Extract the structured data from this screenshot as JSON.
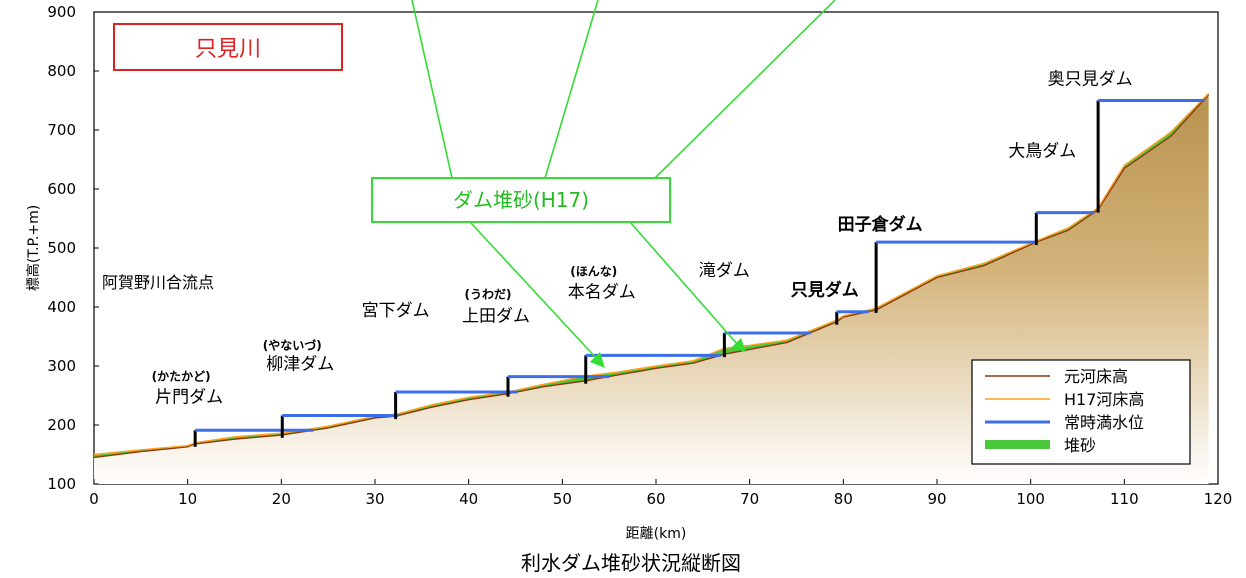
{
  "title": "利水ダム堆砂状況縦断図",
  "chart_data": {
    "type": "line",
    "title": "利水ダム堆砂状況縦断図",
    "river_label": "只見川",
    "confluence_label": "阿賀野川合流点",
    "callout_label": "ダム堆砂(H17)",
    "xlabel": "距離(km)",
    "ylabel": "標高(T.P.+m)",
    "xlim": [
      0,
      120
    ],
    "ylim": [
      100,
      900
    ],
    "x_ticks": [
      "0",
      "10",
      "20",
      "30",
      "40",
      "50",
      "60",
      "70",
      "80",
      "90",
      "100",
      "110",
      "120"
    ],
    "y_ticks": [
      "100",
      "200",
      "300",
      "400",
      "500",
      "600",
      "700",
      "800",
      "900"
    ],
    "grid": false,
    "legend_position": "bottom-right",
    "legend": [
      {
        "label": "元河床高",
        "color": "#8B3A0F"
      },
      {
        "label": "H17河床高",
        "color": "#FFA020"
      },
      {
        "label": "常時満水位",
        "color": "#3C6EE8"
      },
      {
        "label": "堆砂",
        "color": "#4CC83C"
      }
    ],
    "colors": {
      "riverbed_fill": "#C8A060",
      "original_bed": "#8B3A0F",
      "h17_bed": "#FFA020",
      "water_level": "#3C6EE8",
      "sediment": "#4CC83C",
      "callout": "#33DD33",
      "river_box": "#DD2222"
    },
    "series": [
      {
        "name": "元河床高",
        "x": [
          0,
          5,
          10,
          10.8,
          15,
          20,
          25,
          30,
          32.2,
          36,
          40,
          44.2,
          48,
          52.5,
          56,
          60,
          64,
          67.3,
          70,
          74,
          79.3,
          80,
          83.5,
          90,
          95,
          100.6,
          104,
          107.2,
          110,
          115,
          119
        ],
        "y": [
          145,
          155,
          163,
          168,
          176,
          183,
          195,
          212,
          215,
          230,
          243,
          253,
          265,
          275,
          285,
          296,
          305,
          320,
          328,
          340,
          375,
          383,
          395,
          450,
          470,
          510,
          530,
          565,
          635,
          690,
          760
        ]
      },
      {
        "name": "H17河床高",
        "x": [
          0,
          5,
          10,
          10.8,
          15,
          20,
          25,
          30,
          32.2,
          36,
          40,
          44.2,
          48,
          52.5,
          56,
          60,
          64,
          67.3,
          70,
          74,
          79.3,
          80,
          83.5,
          90,
          95,
          100.6,
          104,
          107.2,
          110,
          115,
          119
        ],
        "y": [
          150,
          158,
          165,
          170,
          180,
          186,
          198,
          215,
          218,
          234,
          247,
          256,
          269,
          283,
          290,
          300,
          309,
          330,
          335,
          344,
          378,
          385,
          398,
          453,
          474,
          512,
          534,
          568,
          640,
          697,
          762
        ]
      }
    ],
    "dams": [
      {
        "name": "片門ダム",
        "reading": "(かたかど)",
        "km": 10.8,
        "water_level": 191
      },
      {
        "name": "柳津ダム",
        "reading": "(やないづ)",
        "km": 20.1,
        "water_level": 216
      },
      {
        "name": "宮下ダム",
        "reading": "",
        "km": 32.2,
        "water_level": 256
      },
      {
        "name": "上田ダム",
        "reading": "(うわだ)",
        "km": 44.2,
        "water_level": 282
      },
      {
        "name": "本名ダム",
        "reading": "(ほんな)",
        "km": 52.5,
        "water_level": 318
      },
      {
        "name": "滝ダム",
        "reading": "",
        "km": 67.3,
        "water_level": 356
      },
      {
        "name": "只見ダム",
        "reading": "",
        "km": 79.3,
        "water_level": 392
      },
      {
        "name": "田子倉ダム",
        "reading": "",
        "km": 83.5,
        "water_level": 510
      },
      {
        "name": "大鳥ダム",
        "reading": "",
        "km": 100.6,
        "water_level": 560
      },
      {
        "name": "奥只見ダム",
        "reading": "",
        "km": 107.2,
        "water_level": 750
      }
    ]
  }
}
